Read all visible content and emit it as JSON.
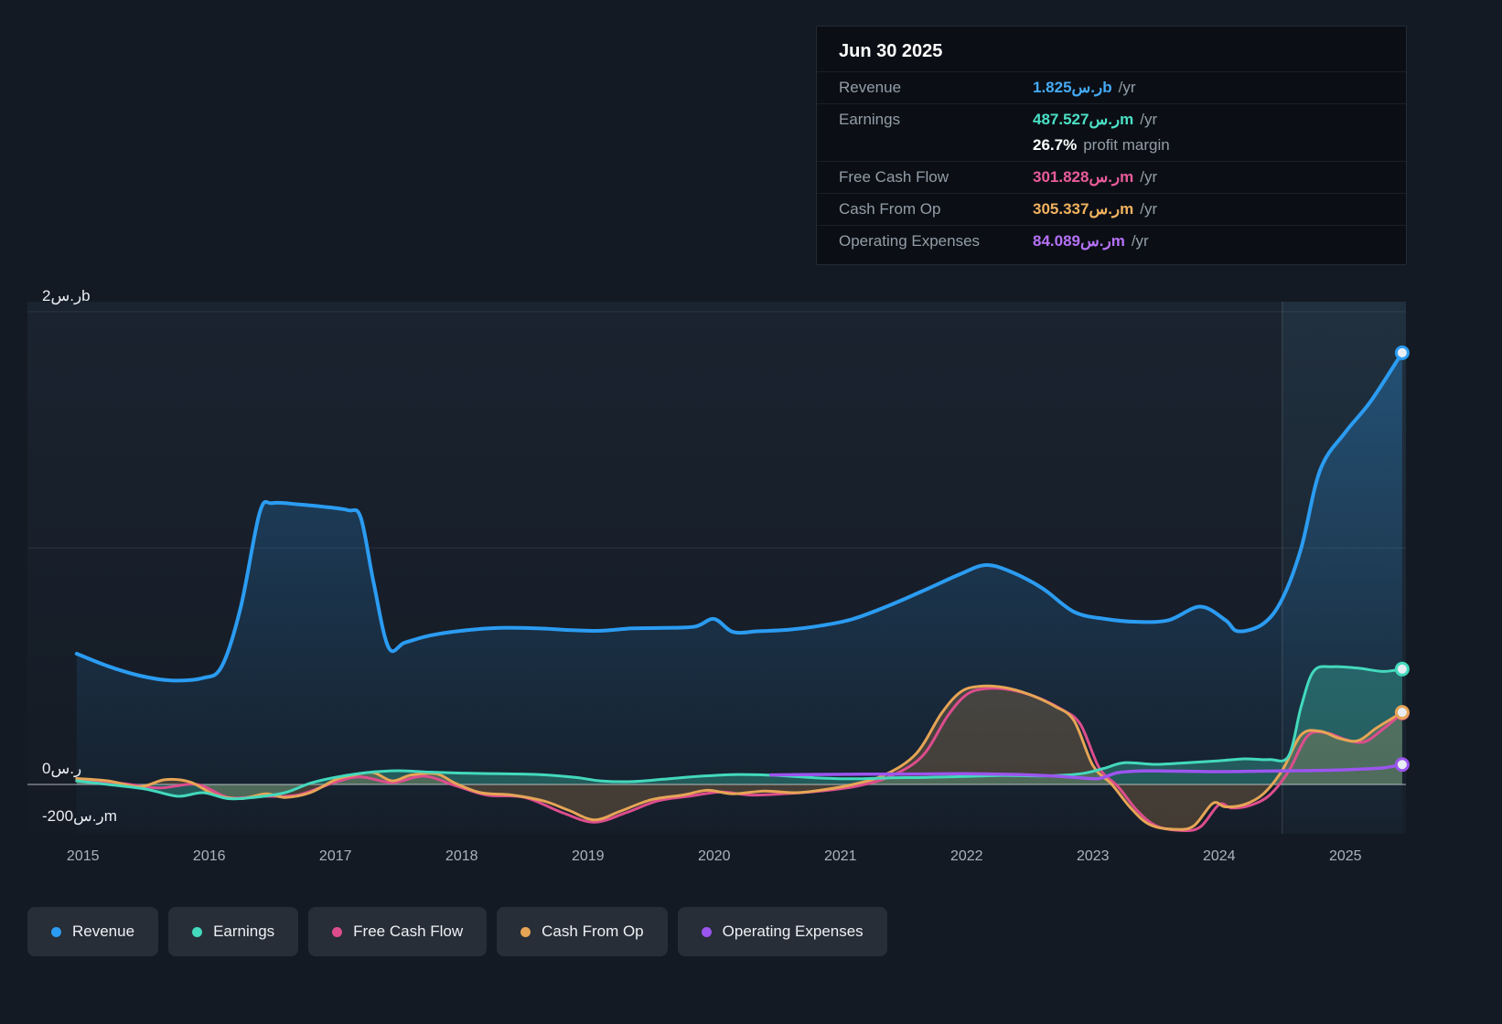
{
  "tooltip": {
    "date": "Jun 30 2025",
    "rows": [
      {
        "label": "Revenue",
        "value": "1.825ر.سb",
        "suffix": "/yr",
        "color": "#45aaf5"
      },
      {
        "label": "Earnings",
        "value": "487.527ر.سm",
        "suffix": "/yr",
        "color": "#4be0c6"
      },
      {
        "label": "",
        "value": "26.7%",
        "suffix": "profit margin",
        "color": "#ffffff"
      },
      {
        "label": "Free Cash Flow",
        "value": "301.828ر.سm",
        "suffix": "/yr",
        "color": "#ea5c9c"
      },
      {
        "label": "Cash From Op",
        "value": "305.337ر.سm",
        "suffix": "/yr",
        "color": "#f2b25f"
      },
      {
        "label": "Operating Expenses",
        "value": "84.089ر.سm",
        "suffix": "/yr",
        "color": "#b571f7"
      }
    ]
  },
  "legend": {
    "items": [
      {
        "label": "Revenue",
        "color": "#2b9cf2"
      },
      {
        "label": "Earnings",
        "color": "#43d9bd"
      },
      {
        "label": "Free Cash Flow",
        "color": "#dd4d8d"
      },
      {
        "label": "Cash From Op",
        "color": "#e6a556"
      },
      {
        "label": "Operating Expenses",
        "color": "#9b55ee"
      }
    ]
  },
  "chart_data": {
    "type": "line",
    "title": "",
    "unit": "SAR (ر.س) millions",
    "x_axis": {
      "range": [
        2014.56,
        2025.48
      ],
      "ticks": [
        2015,
        2016,
        2017,
        2018,
        2019,
        2020,
        2021,
        2022,
        2023,
        2024,
        2025
      ]
    },
    "y_axis": {
      "range": [
        -209,
        2042
      ],
      "gridlines": [
        2000,
        1000
      ],
      "zero_line": 0,
      "labels": [
        {
          "text": "2ر.سb",
          "value": 2000
        },
        {
          "text": "0ر.س",
          "value": 0
        },
        {
          "text": "-200ر.سm",
          "value": -200
        }
      ]
    },
    "divider_x": 2024.5,
    "series": [
      {
        "name": "Revenue",
        "color": "#2b9cf2",
        "width": 4,
        "fill": "gradient",
        "points": [
          [
            2014.95,
            553
          ],
          [
            2015.2,
            500
          ],
          [
            2015.45,
            460
          ],
          [
            2015.7,
            440
          ],
          [
            2015.95,
            450
          ],
          [
            2016.1,
            500
          ],
          [
            2016.25,
            750
          ],
          [
            2016.4,
            1150
          ],
          [
            2016.5,
            1190
          ],
          [
            2016.7,
            1185
          ],
          [
            2016.9,
            1175
          ],
          [
            2017.1,
            1160
          ],
          [
            2017.2,
            1130
          ],
          [
            2017.3,
            860
          ],
          [
            2017.42,
            580
          ],
          [
            2017.55,
            600
          ],
          [
            2017.75,
            630
          ],
          [
            2018.0,
            650
          ],
          [
            2018.3,
            662
          ],
          [
            2018.6,
            660
          ],
          [
            2018.9,
            652
          ],
          [
            2019.1,
            650
          ],
          [
            2019.35,
            660
          ],
          [
            2019.6,
            662
          ],
          [
            2019.85,
            668
          ],
          [
            2020.0,
            700
          ],
          [
            2020.15,
            645
          ],
          [
            2020.35,
            648
          ],
          [
            2020.6,
            655
          ],
          [
            2020.85,
            672
          ],
          [
            2021.1,
            700
          ],
          [
            2021.4,
            760
          ],
          [
            2021.7,
            830
          ],
          [
            2021.95,
            890
          ],
          [
            2022.15,
            928
          ],
          [
            2022.35,
            900
          ],
          [
            2022.6,
            830
          ],
          [
            2022.85,
            730
          ],
          [
            2023.1,
            700
          ],
          [
            2023.35,
            688
          ],
          [
            2023.6,
            695
          ],
          [
            2023.85,
            752
          ],
          [
            2024.05,
            695
          ],
          [
            2024.15,
            648
          ],
          [
            2024.35,
            680
          ],
          [
            2024.5,
            785
          ],
          [
            2024.65,
            1000
          ],
          [
            2024.8,
            1330
          ],
          [
            2025.0,
            1490
          ],
          [
            2025.2,
            1620
          ],
          [
            2025.45,
            1826
          ]
        ]
      },
      {
        "name": "Earnings",
        "color": "#43d9bd",
        "width": 3,
        "fill": "flat",
        "fill_opacity": 0.3,
        "points": [
          [
            2014.95,
            15
          ],
          [
            2015.2,
            0
          ],
          [
            2015.5,
            -20
          ],
          [
            2015.75,
            -50
          ],
          [
            2015.95,
            -35
          ],
          [
            2016.15,
            -60
          ],
          [
            2016.35,
            -55
          ],
          [
            2016.6,
            -35
          ],
          [
            2016.8,
            5
          ],
          [
            2017.0,
            30
          ],
          [
            2017.25,
            50
          ],
          [
            2017.5,
            58
          ],
          [
            2017.75,
            52
          ],
          [
            2018.0,
            48
          ],
          [
            2018.3,
            45
          ],
          [
            2018.6,
            42
          ],
          [
            2018.9,
            30
          ],
          [
            2019.1,
            15
          ],
          [
            2019.35,
            12
          ],
          [
            2019.6,
            22
          ],
          [
            2019.9,
            35
          ],
          [
            2020.2,
            42
          ],
          [
            2020.5,
            38
          ],
          [
            2020.8,
            28
          ],
          [
            2021.1,
            24
          ],
          [
            2021.4,
            28
          ],
          [
            2021.7,
            30
          ],
          [
            2022.0,
            34
          ],
          [
            2022.3,
            38
          ],
          [
            2022.6,
            36
          ],
          [
            2022.9,
            45
          ],
          [
            2023.1,
            70
          ],
          [
            2023.25,
            92
          ],
          [
            2023.5,
            85
          ],
          [
            2023.75,
            92
          ],
          [
            2024.0,
            100
          ],
          [
            2024.2,
            108
          ],
          [
            2024.4,
            105
          ],
          [
            2024.55,
            120
          ],
          [
            2024.65,
            330
          ],
          [
            2024.75,
            480
          ],
          [
            2024.9,
            498
          ],
          [
            2025.1,
            492
          ],
          [
            2025.3,
            478
          ],
          [
            2025.45,
            488
          ]
        ]
      },
      {
        "name": "Free Cash Flow",
        "color": "#dd4d8d",
        "width": 3,
        "fill": "none",
        "points": [
          [
            2014.95,
            15
          ],
          [
            2015.3,
            5
          ],
          [
            2015.6,
            -15
          ],
          [
            2015.9,
            0
          ],
          [
            2016.15,
            -55
          ],
          [
            2016.4,
            -50
          ],
          [
            2016.7,
            -45
          ],
          [
            2017.0,
            10
          ],
          [
            2017.2,
            32
          ],
          [
            2017.45,
            8
          ],
          [
            2017.7,
            35
          ],
          [
            2017.95,
            -5
          ],
          [
            2018.2,
            -45
          ],
          [
            2018.5,
            -55
          ],
          [
            2018.8,
            -120
          ],
          [
            2019.05,
            -160
          ],
          [
            2019.3,
            -120
          ],
          [
            2019.55,
            -70
          ],
          [
            2019.8,
            -50
          ],
          [
            2020.05,
            -32
          ],
          [
            2020.3,
            -45
          ],
          [
            2020.6,
            -38
          ],
          [
            2020.9,
            -25
          ],
          [
            2021.15,
            -5
          ],
          [
            2021.4,
            35
          ],
          [
            2021.65,
            120
          ],
          [
            2021.85,
            290
          ],
          [
            2022.0,
            380
          ],
          [
            2022.15,
            405
          ],
          [
            2022.35,
            400
          ],
          [
            2022.55,
            370
          ],
          [
            2022.75,
            318
          ],
          [
            2022.9,
            255
          ],
          [
            2023.05,
            70
          ],
          [
            2023.2,
            -10
          ],
          [
            2023.35,
            -110
          ],
          [
            2023.5,
            -175
          ],
          [
            2023.7,
            -195
          ],
          [
            2023.85,
            -180
          ],
          [
            2024.0,
            -85
          ],
          [
            2024.1,
            -100
          ],
          [
            2024.25,
            -88
          ],
          [
            2024.4,
            -45
          ],
          [
            2024.55,
            55
          ],
          [
            2024.7,
            205
          ],
          [
            2024.85,
            218
          ],
          [
            2025.0,
            190
          ],
          [
            2025.15,
            180
          ],
          [
            2025.3,
            235
          ],
          [
            2025.45,
            302
          ]
        ]
      },
      {
        "name": "Cash From Op",
        "color": "#e6a556",
        "width": 3,
        "fill": "flat",
        "fill_opacity": 0.22,
        "points": [
          [
            2014.95,
            25
          ],
          [
            2015.2,
            15
          ],
          [
            2015.45,
            -10
          ],
          [
            2015.65,
            20
          ],
          [
            2015.85,
            10
          ],
          [
            2016.05,
            -45
          ],
          [
            2016.25,
            -60
          ],
          [
            2016.45,
            -40
          ],
          [
            2016.6,
            -55
          ],
          [
            2016.8,
            -35
          ],
          [
            2017.0,
            20
          ],
          [
            2017.15,
            40
          ],
          [
            2017.3,
            50
          ],
          [
            2017.45,
            15
          ],
          [
            2017.6,
            40
          ],
          [
            2017.8,
            45
          ],
          [
            2017.95,
            5
          ],
          [
            2018.15,
            -35
          ],
          [
            2018.4,
            -45
          ],
          [
            2018.65,
            -70
          ],
          [
            2018.85,
            -110
          ],
          [
            2019.05,
            -150
          ],
          [
            2019.25,
            -115
          ],
          [
            2019.5,
            -65
          ],
          [
            2019.75,
            -45
          ],
          [
            2019.95,
            -25
          ],
          [
            2020.15,
            -40
          ],
          [
            2020.4,
            -28
          ],
          [
            2020.65,
            -35
          ],
          [
            2020.9,
            -20
          ],
          [
            2021.1,
            0
          ],
          [
            2021.35,
            40
          ],
          [
            2021.6,
            130
          ],
          [
            2021.8,
            300
          ],
          [
            2021.95,
            390
          ],
          [
            2022.1,
            415
          ],
          [
            2022.3,
            410
          ],
          [
            2022.5,
            380
          ],
          [
            2022.7,
            330
          ],
          [
            2022.85,
            270
          ],
          [
            2023.0,
            80
          ],
          [
            2023.15,
            0
          ],
          [
            2023.3,
            -100
          ],
          [
            2023.45,
            -170
          ],
          [
            2023.65,
            -190
          ],
          [
            2023.8,
            -175
          ],
          [
            2023.95,
            -80
          ],
          [
            2024.05,
            -95
          ],
          [
            2024.2,
            -85
          ],
          [
            2024.35,
            -40
          ],
          [
            2024.5,
            60
          ],
          [
            2024.65,
            210
          ],
          [
            2024.8,
            225
          ],
          [
            2024.95,
            195
          ],
          [
            2025.1,
            185
          ],
          [
            2025.25,
            240
          ],
          [
            2025.45,
            305
          ]
        ]
      },
      {
        "name": "Operating Expenses",
        "color": "#9b55ee",
        "width": 3.5,
        "fill": "none",
        "points": [
          [
            2020.45,
            40
          ],
          [
            2020.8,
            42
          ],
          [
            2021.2,
            43
          ],
          [
            2021.6,
            44
          ],
          [
            2022.0,
            45
          ],
          [
            2022.4,
            42
          ],
          [
            2022.7,
            35
          ],
          [
            2022.9,
            28
          ],
          [
            2023.05,
            25
          ],
          [
            2023.2,
            50
          ],
          [
            2023.4,
            57
          ],
          [
            2023.7,
            56
          ],
          [
            2024.0,
            54
          ],
          [
            2024.3,
            56
          ],
          [
            2024.6,
            58
          ],
          [
            2024.9,
            60
          ],
          [
            2025.1,
            64
          ],
          [
            2025.3,
            70
          ],
          [
            2025.45,
            84
          ]
        ]
      }
    ]
  }
}
